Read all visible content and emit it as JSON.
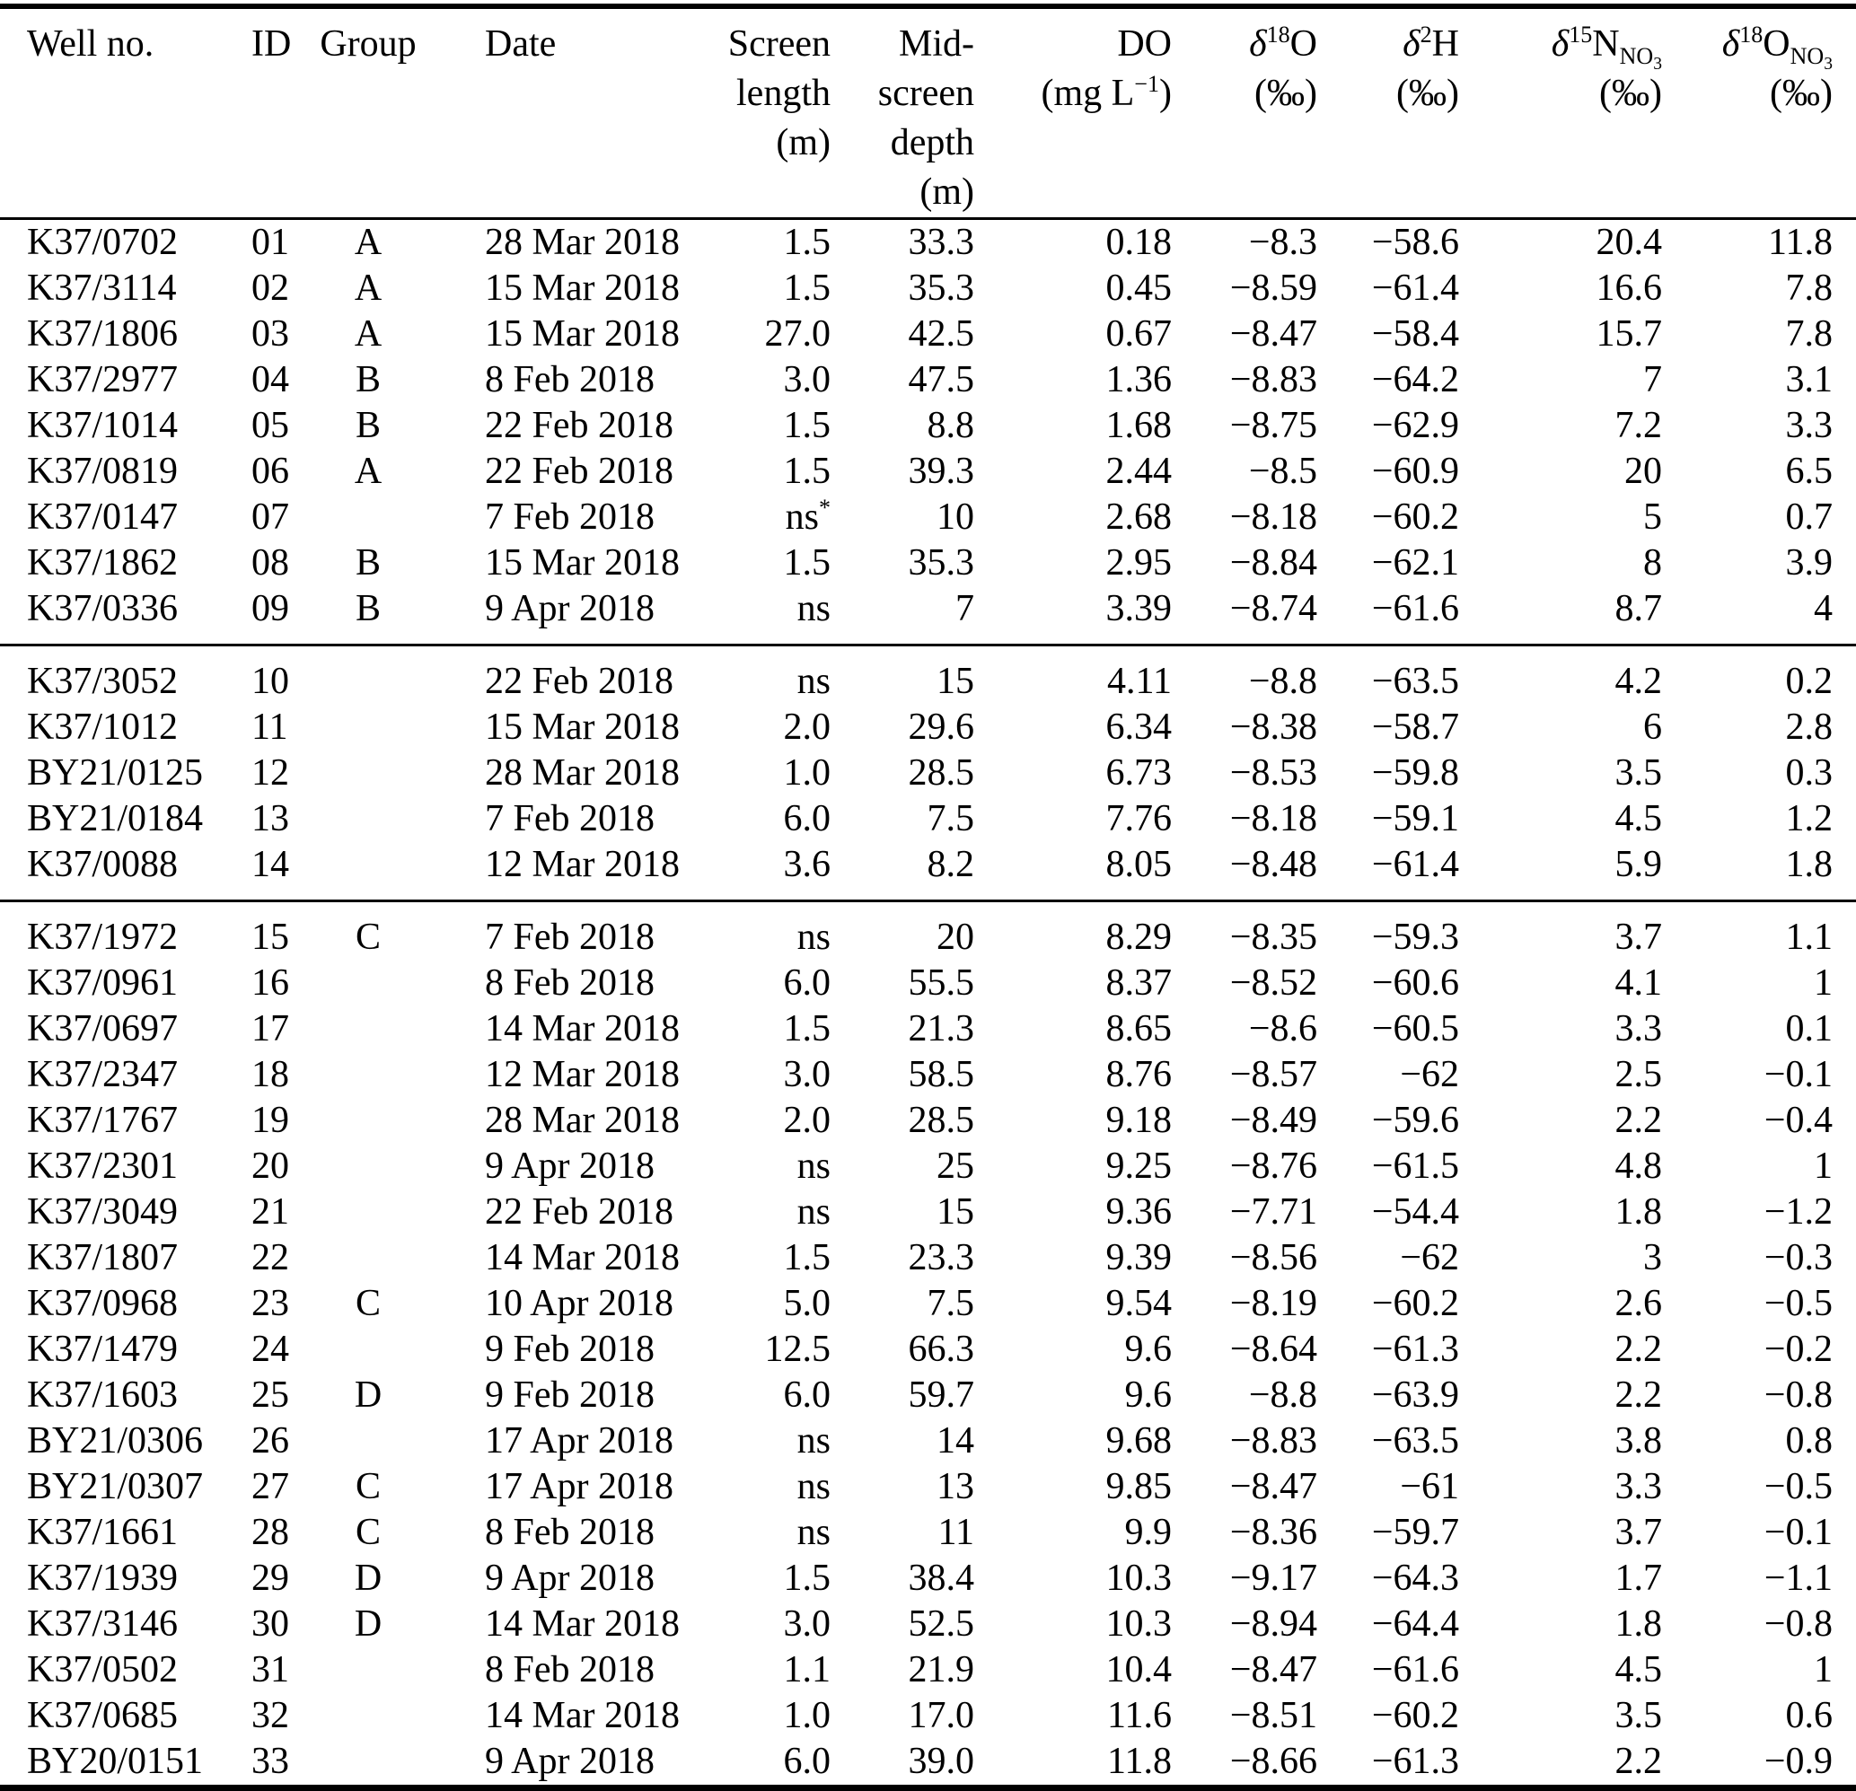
{
  "table": {
    "header": {
      "well": "Well no.",
      "id": "ID",
      "group": "Group",
      "date": "Date",
      "screen": [
        "Screen",
        "length",
        "(m)"
      ],
      "mid": [
        "Mid-",
        "screen",
        "depth",
        "(m)"
      ],
      "do": {
        "name": "DO",
        "unit_pre": "(mg L",
        "unit_sup": "−1",
        "unit_post": ")"
      },
      "d18o": {
        "delta": "δ",
        "sup": "18",
        "base": "O",
        "unit": "(‰)"
      },
      "d2h": {
        "delta": "δ",
        "sup": "2",
        "base": "H",
        "unit": "(‰)"
      },
      "d15n_no3": {
        "delta": "δ",
        "sup": "15",
        "base": "N",
        "sub_main": "NO",
        "sub_sub": "3",
        "unit": "(‰)"
      },
      "d18o_no3": {
        "delta": "δ",
        "sup": "18",
        "base": "O",
        "sub_main": "NO",
        "sub_sub": "3",
        "unit": "(‰)"
      }
    },
    "footnote_marker": "*",
    "sections": [
      [
        {
          "well": "K37/0702",
          "id": "01",
          "group": "A",
          "date": "28 Mar 2018",
          "screen_length": "1.5",
          "mid_screen_depth": "33.3",
          "do": "0.18",
          "d18o": "−8.3",
          "d2h": "−58.6",
          "d15n_no3": "20.4",
          "d18o_no3": "11.8"
        },
        {
          "well": "K37/3114",
          "id": "02",
          "group": "A",
          "date": "15 Mar 2018",
          "screen_length": "1.5",
          "mid_screen_depth": "35.3",
          "do": "0.45",
          "d18o": "−8.59",
          "d2h": "−61.4",
          "d15n_no3": "16.6",
          "d18o_no3": "7.8"
        },
        {
          "well": "K37/1806",
          "id": "03",
          "group": "A",
          "date": "15 Mar 2018",
          "screen_length": "27.0",
          "mid_screen_depth": "42.5",
          "do": "0.67",
          "d18o": "−8.47",
          "d2h": "−58.4",
          "d15n_no3": "15.7",
          "d18o_no3": "7.8"
        },
        {
          "well": "K37/2977",
          "id": "04",
          "group": "B",
          "date": "8 Feb 2018",
          "screen_length": "3.0",
          "mid_screen_depth": "47.5",
          "do": "1.36",
          "d18o": "−8.83",
          "d2h": "−64.2",
          "d15n_no3": "7",
          "d18o_no3": "3.1"
        },
        {
          "well": "K37/1014",
          "id": "05",
          "group": "B",
          "date": "22 Feb 2018",
          "screen_length": "1.5",
          "mid_screen_depth": "8.8",
          "do": "1.68",
          "d18o": "−8.75",
          "d2h": "−62.9",
          "d15n_no3": "7.2",
          "d18o_no3": "3.3"
        },
        {
          "well": "K37/0819",
          "id": "06",
          "group": "A",
          "date": "22 Feb 2018",
          "screen_length": "1.5",
          "mid_screen_depth": "39.3",
          "do": "2.44",
          "d18o": "−8.5",
          "d2h": "−60.9",
          "d15n_no3": "20",
          "d18o_no3": "6.5"
        },
        {
          "well": "K37/0147",
          "id": "07",
          "group": "",
          "date": "7 Feb 2018",
          "screen_length": "ns*",
          "mid_screen_depth": "10",
          "do": "2.68",
          "d18o": "−8.18",
          "d2h": "−60.2",
          "d15n_no3": "5",
          "d18o_no3": "0.7"
        },
        {
          "well": "K37/1862",
          "id": "08",
          "group": "B",
          "date": "15 Mar 2018",
          "screen_length": "1.5",
          "mid_screen_depth": "35.3",
          "do": "2.95",
          "d18o": "−8.84",
          "d2h": "−62.1",
          "d15n_no3": "8",
          "d18o_no3": "3.9"
        },
        {
          "well": "K37/0336",
          "id": "09",
          "group": "B",
          "date": "9 Apr 2018",
          "screen_length": "ns",
          "mid_screen_depth": "7",
          "do": "3.39",
          "d18o": "−8.74",
          "d2h": "−61.6",
          "d15n_no3": "8.7",
          "d18o_no3": "4"
        }
      ],
      [
        {
          "well": "K37/3052",
          "id": "10",
          "group": "",
          "date": "22 Feb 2018",
          "screen_length": "ns",
          "mid_screen_depth": "15",
          "do": "4.11",
          "d18o": "−8.8",
          "d2h": "−63.5",
          "d15n_no3": "4.2",
          "d18o_no3": "0.2"
        },
        {
          "well": "K37/1012",
          "id": "11",
          "group": "",
          "date": "15 Mar 2018",
          "screen_length": "2.0",
          "mid_screen_depth": "29.6",
          "do": "6.34",
          "d18o": "−8.38",
          "d2h": "−58.7",
          "d15n_no3": "6",
          "d18o_no3": "2.8"
        },
        {
          "well": "BY21/0125",
          "id": "12",
          "group": "",
          "date": "28 Mar 2018",
          "screen_length": "1.0",
          "mid_screen_depth": "28.5",
          "do": "6.73",
          "d18o": "−8.53",
          "d2h": "−59.8",
          "d15n_no3": "3.5",
          "d18o_no3": "0.3"
        },
        {
          "well": "BY21/0184",
          "id": "13",
          "group": "",
          "date": "7 Feb 2018",
          "screen_length": "6.0",
          "mid_screen_depth": "7.5",
          "do": "7.76",
          "d18o": "−8.18",
          "d2h": "−59.1",
          "d15n_no3": "4.5",
          "d18o_no3": "1.2"
        },
        {
          "well": "K37/0088",
          "id": "14",
          "group": "",
          "date": "12 Mar 2018",
          "screen_length": "3.6",
          "mid_screen_depth": "8.2",
          "do": "8.05",
          "d18o": "−8.48",
          "d2h": "−61.4",
          "d15n_no3": "5.9",
          "d18o_no3": "1.8"
        }
      ],
      [
        {
          "well": "K37/1972",
          "id": "15",
          "group": "C",
          "date": "7 Feb 2018",
          "screen_length": "ns",
          "mid_screen_depth": "20",
          "do": "8.29",
          "d18o": "−8.35",
          "d2h": "−59.3",
          "d15n_no3": "3.7",
          "d18o_no3": "1.1"
        },
        {
          "well": "K37/0961",
          "id": "16",
          "group": "",
          "date": "8 Feb 2018",
          "screen_length": "6.0",
          "mid_screen_depth": "55.5",
          "do": "8.37",
          "d18o": "−8.52",
          "d2h": "−60.6",
          "d15n_no3": "4.1",
          "d18o_no3": "1"
        },
        {
          "well": "K37/0697",
          "id": "17",
          "group": "",
          "date": "14 Mar 2018",
          "screen_length": "1.5",
          "mid_screen_depth": "21.3",
          "do": "8.65",
          "d18o": "−8.6",
          "d2h": "−60.5",
          "d15n_no3": "3.3",
          "d18o_no3": "0.1"
        },
        {
          "well": "K37/2347",
          "id": "18",
          "group": "",
          "date": "12 Mar 2018",
          "screen_length": "3.0",
          "mid_screen_depth": "58.5",
          "do": "8.76",
          "d18o": "−8.57",
          "d2h": "−62",
          "d15n_no3": "2.5",
          "d18o_no3": "−0.1"
        },
        {
          "well": "K37/1767",
          "id": "19",
          "group": "",
          "date": "28 Mar 2018",
          "screen_length": "2.0",
          "mid_screen_depth": "28.5",
          "do": "9.18",
          "d18o": "−8.49",
          "d2h": "−59.6",
          "d15n_no3": "2.2",
          "d18o_no3": "−0.4"
        },
        {
          "well": "K37/2301",
          "id": "20",
          "group": "",
          "date": "9 Apr 2018",
          "screen_length": "ns",
          "mid_screen_depth": "25",
          "do": "9.25",
          "d18o": "−8.76",
          "d2h": "−61.5",
          "d15n_no3": "4.8",
          "d18o_no3": "1"
        },
        {
          "well": "K37/3049",
          "id": "21",
          "group": "",
          "date": "22 Feb 2018",
          "screen_length": "ns",
          "mid_screen_depth": "15",
          "do": "9.36",
          "d18o": "−7.71",
          "d2h": "−54.4",
          "d15n_no3": "1.8",
          "d18o_no3": "−1.2"
        },
        {
          "well": "K37/1807",
          "id": "22",
          "group": "",
          "date": "14 Mar 2018",
          "screen_length": "1.5",
          "mid_screen_depth": "23.3",
          "do": "9.39",
          "d18o": "−8.56",
          "d2h": "−62",
          "d15n_no3": "3",
          "d18o_no3": "−0.3"
        },
        {
          "well": "K37/0968",
          "id": "23",
          "group": "C",
          "date": "10 Apr 2018",
          "screen_length": "5.0",
          "mid_screen_depth": "7.5",
          "do": "9.54",
          "d18o": "−8.19",
          "d2h": "−60.2",
          "d15n_no3": "2.6",
          "d18o_no3": "−0.5"
        },
        {
          "well": "K37/1479",
          "id": "24",
          "group": "",
          "date": "9 Feb 2018",
          "screen_length": "12.5",
          "mid_screen_depth": "66.3",
          "do": "9.6",
          "d18o": "−8.64",
          "d2h": "−61.3",
          "d15n_no3": "2.2",
          "d18o_no3": "−0.2"
        },
        {
          "well": "K37/1603",
          "id": "25",
          "group": "D",
          "date": "9 Feb 2018",
          "screen_length": "6.0",
          "mid_screen_depth": "59.7",
          "do": "9.6",
          "d18o": "−8.8",
          "d2h": "−63.9",
          "d15n_no3": "2.2",
          "d18o_no3": "−0.8"
        },
        {
          "well": "BY21/0306",
          "id": "26",
          "group": "",
          "date": "17 Apr 2018",
          "screen_length": "ns",
          "mid_screen_depth": "14",
          "do": "9.68",
          "d18o": "−8.83",
          "d2h": "−63.5",
          "d15n_no3": "3.8",
          "d18o_no3": "0.8"
        },
        {
          "well": "BY21/0307",
          "id": "27",
          "group": "C",
          "date": "17 Apr 2018",
          "screen_length": "ns",
          "mid_screen_depth": "13",
          "do": "9.85",
          "d18o": "−8.47",
          "d2h": "−61",
          "d15n_no3": "3.3",
          "d18o_no3": "−0.5"
        },
        {
          "well": "K37/1661",
          "id": "28",
          "group": "C",
          "date": "8 Feb 2018",
          "screen_length": "ns",
          "mid_screen_depth": "11",
          "do": "9.9",
          "d18o": "−8.36",
          "d2h": "−59.7",
          "d15n_no3": "3.7",
          "d18o_no3": "−0.1"
        },
        {
          "well": "K37/1939",
          "id": "29",
          "group": "D",
          "date": "9 Apr 2018",
          "screen_length": "1.5",
          "mid_screen_depth": "38.4",
          "do": "10.3",
          "d18o": "−9.17",
          "d2h": "−64.3",
          "d15n_no3": "1.7",
          "d18o_no3": "−1.1"
        },
        {
          "well": "K37/3146",
          "id": "30",
          "group": "D",
          "date": "14 Mar 2018",
          "screen_length": "3.0",
          "mid_screen_depth": "52.5",
          "do": "10.3",
          "d18o": "−8.94",
          "d2h": "−64.4",
          "d15n_no3": "1.8",
          "d18o_no3": "−0.8"
        },
        {
          "well": "K37/0502",
          "id": "31",
          "group": "",
          "date": "8 Feb 2018",
          "screen_length": "1.1",
          "mid_screen_depth": "21.9",
          "do": "10.4",
          "d18o": "−8.47",
          "d2h": "−61.6",
          "d15n_no3": "4.5",
          "d18o_no3": "1"
        },
        {
          "well": "K37/0685",
          "id": "32",
          "group": "",
          "date": "14 Mar 2018",
          "screen_length": "1.0",
          "mid_screen_depth": "17.0",
          "do": "11.6",
          "d18o": "−8.51",
          "d2h": "−60.2",
          "d15n_no3": "3.5",
          "d18o_no3": "0.6"
        },
        {
          "well": "BY20/0151",
          "id": "33",
          "group": "",
          "date": "9 Apr 2018",
          "screen_length": "6.0",
          "mid_screen_depth": "39.0",
          "do": "11.8",
          "d18o": "−8.66",
          "d2h": "−61.3",
          "d15n_no3": "2.2",
          "d18o_no3": "−0.9"
        }
      ]
    ]
  }
}
